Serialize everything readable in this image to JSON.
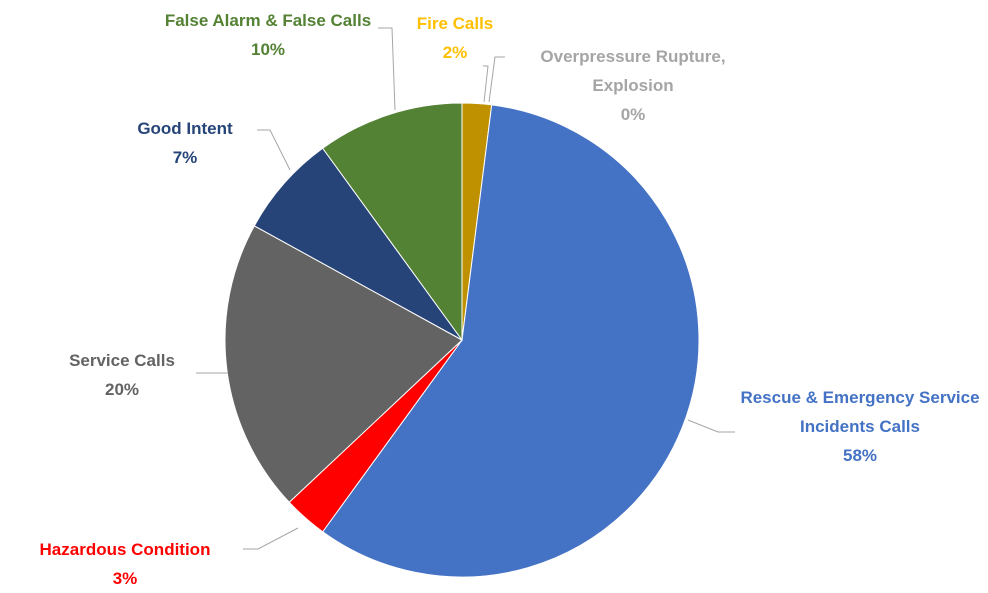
{
  "chart_data": {
    "type": "pie",
    "categories": [
      "Fire Calls",
      "Overpressure Rupture, Explosion",
      "Rescue & Emergency Service Incidents Calls",
      "Hazardous Condition",
      "Service Calls",
      "Good Intent",
      "False Alarm & False Calls"
    ],
    "values": [
      2,
      0,
      58,
      3,
      20,
      7,
      10
    ],
    "value_labels": [
      "2%",
      "0%",
      "58%",
      "3%",
      "20%",
      "7%",
      "10%"
    ],
    "colors": [
      "#bf9000",
      "#a5a5a5",
      "#4472c4",
      "#ff0000",
      "#636363",
      "#264478",
      "#548235"
    ],
    "label_colors": [
      "#ffc000",
      "#a5a5a5",
      "#4472c4",
      "#ff0000",
      "#636363",
      "#264478",
      "#548235"
    ]
  }
}
